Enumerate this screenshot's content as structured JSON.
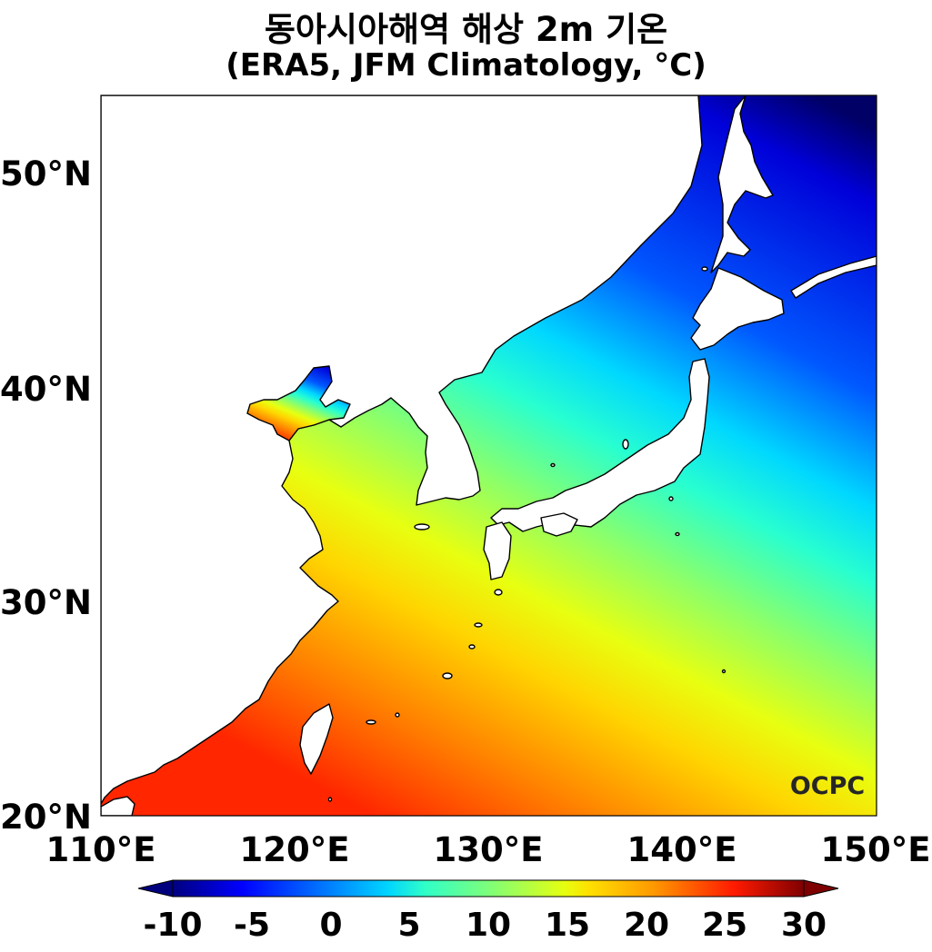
{
  "title": {
    "line1": "동아시아해역 해상 2m 기온",
    "line2": "(ERA5, JFM Climatology, °C)"
  },
  "map": {
    "lon_range": [
      110,
      150
    ],
    "lat_range": [
      20,
      53.5
    ],
    "x_ticks": [
      "110°E",
      "120°E",
      "130°E",
      "140°E",
      "150°E"
    ],
    "y_ticks": [
      "20°N",
      "30°N",
      "40°N",
      "50°N"
    ],
    "watermark": "OCPC",
    "land_color": "#ffffff",
    "coastline_color": "#000000"
  },
  "colorbar": {
    "ticks": [
      "-10",
      "-5",
      "0",
      "5",
      "10",
      "15",
      "20",
      "25",
      "30"
    ],
    "range": [
      -10,
      30
    ],
    "colormap": "jet",
    "extend": "both"
  }
}
